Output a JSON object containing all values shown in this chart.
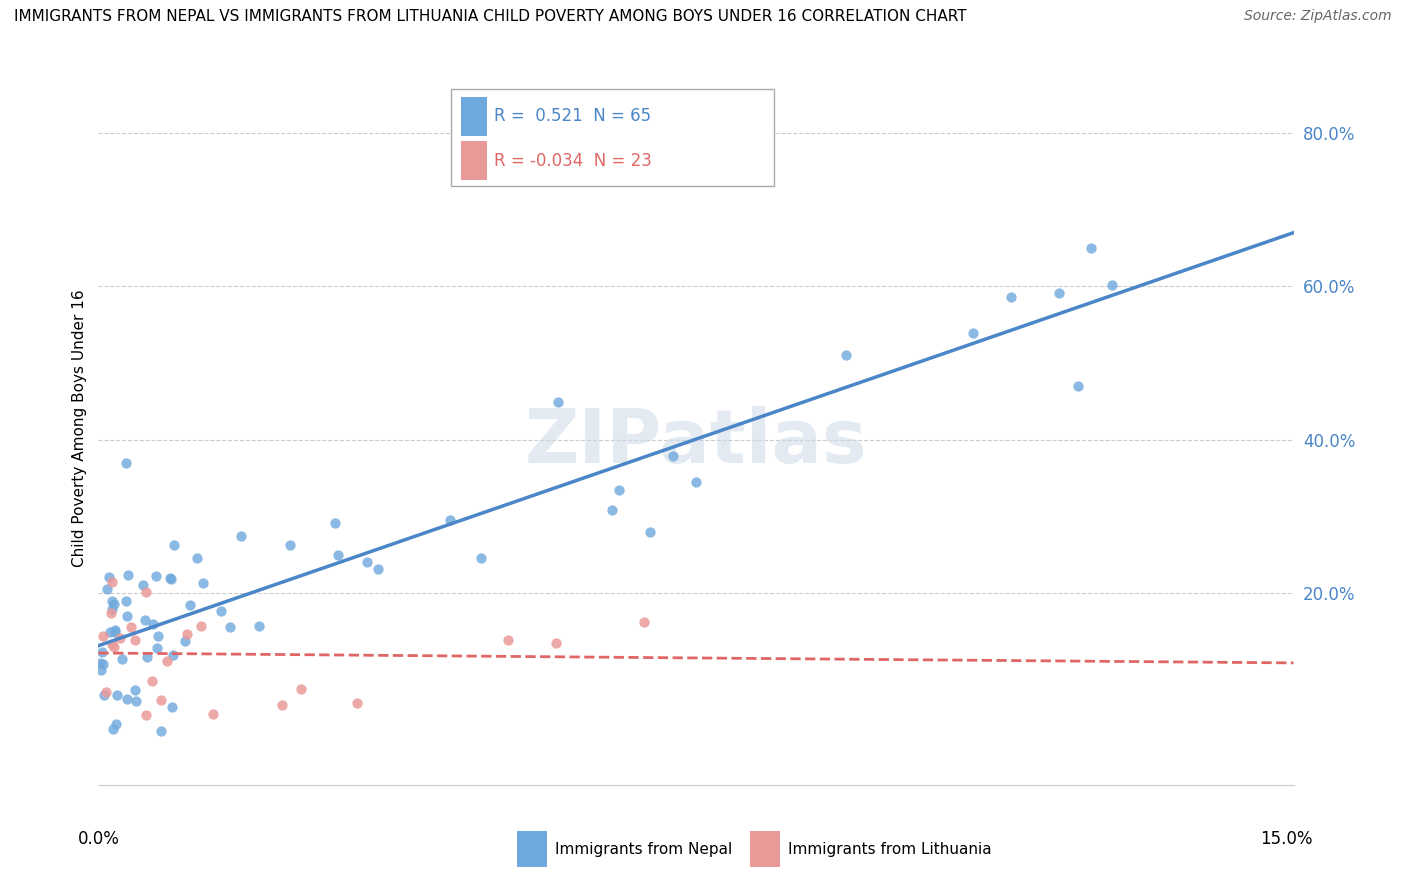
{
  "title": "IMMIGRANTS FROM NEPAL VS IMMIGRANTS FROM LITHUANIA CHILD POVERTY AMONG BOYS UNDER 16 CORRELATION CHART",
  "source": "Source: ZipAtlas.com",
  "ylabel": "Child Poverty Among Boys Under 16",
  "y_tick_values": [
    0.2,
    0.4,
    0.6,
    0.8
  ],
  "x_lim": [
    0.0,
    0.15
  ],
  "y_lim": [
    -0.05,
    0.88
  ],
  "nepal_R": 0.521,
  "nepal_N": 65,
  "lithuania_R": -0.034,
  "lithuania_N": 23,
  "nepal_color": "#6fa8dc",
  "lithuania_color": "#ea9999",
  "nepal_line_color": "#4a86c8",
  "lithuania_line_color": "#e06666",
  "watermark": "ZIPatlas"
}
